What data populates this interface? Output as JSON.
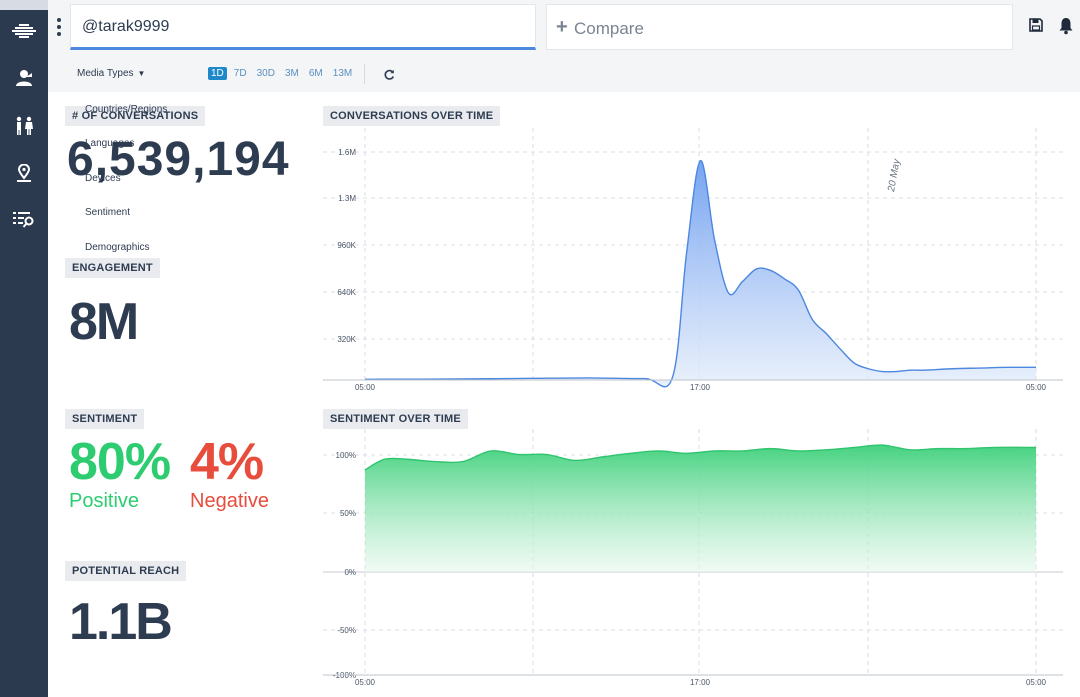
{
  "header": {
    "search_value": "@tarak9999",
    "compare_label": "Compare",
    "media_types_label": "Media Types",
    "time_ranges": [
      "1D",
      "7D",
      "30D",
      "3M",
      "6M",
      "13M"
    ],
    "active_range": "1D"
  },
  "dropdown_menu": [
    "Countries/Regions",
    "Languages",
    "Devices",
    "Sentiment",
    "Demographics"
  ],
  "conversations": {
    "label": "# OF CONVERSATIONS",
    "value": "6,539,194"
  },
  "engagement": {
    "label": "ENGAGEMENT",
    "value": "8M"
  },
  "sentiment": {
    "label": "SENTIMENT",
    "positive_pct": "80%",
    "positive_label": "Positive",
    "negative_pct": "4%",
    "negative_label": "Negative",
    "positive_color": "#2ecc71",
    "negative_color": "#e74c3c"
  },
  "potential_reach": {
    "label": "POTENTIAL REACH",
    "value": "1.1B"
  },
  "chart_data": [
    {
      "type": "area",
      "title": "CONVERSATIONS OVER TIME",
      "y_ticks": [
        "1.6M",
        "1.3M",
        "960K",
        "640K",
        "320K"
      ],
      "x_ticks": [
        "05:00",
        "17:00",
        "05:00"
      ],
      "annotation": "20 May",
      "color": "#4c87e0",
      "ylim": [
        0,
        1700000
      ],
      "x": [
        0,
        2,
        4,
        6,
        8,
        10,
        11,
        11.5,
        12,
        12.5,
        13,
        13.5,
        14,
        14.5,
        15,
        15.5,
        16,
        16.5,
        17,
        17.5,
        18,
        18.5,
        19,
        19.5,
        20,
        21,
        22,
        23,
        24
      ],
      "values": [
        5000,
        6000,
        8000,
        12000,
        15000,
        10000,
        20000,
        900000,
        1560000,
        1000000,
        620000,
        700000,
        790000,
        780000,
        720000,
        640000,
        430000,
        330000,
        220000,
        120000,
        80000,
        60000,
        60000,
        70000,
        70000,
        80000,
        85000,
        90000,
        90000
      ]
    },
    {
      "type": "area",
      "title": "SENTIMENT OVER TIME",
      "y_ticks": [
        "100%",
        "50%",
        "0%",
        "-50%",
        "-100%"
      ],
      "x_ticks": [
        "05:00",
        "17:00",
        "05:00"
      ],
      "color": "#2ecc71",
      "ylim": [
        -100,
        100
      ],
      "x": [
        0,
        0.7,
        1.5,
        2.5,
        3.5,
        4.5,
        5.5,
        6.5,
        7.5,
        8.5,
        9.5,
        10.5,
        11.5,
        12.5,
        13.5,
        14.5,
        15.5,
        16.5,
        17.5,
        18.5,
        19.5,
        20.5,
        21.5,
        22.5,
        24
      ],
      "values": [
        73,
        82,
        82,
        80,
        80,
        89,
        86,
        86,
        81,
        84,
        87,
        89,
        87,
        89,
        89,
        91,
        89,
        90,
        92,
        94,
        90,
        91,
        91,
        92,
        92
      ]
    }
  ]
}
